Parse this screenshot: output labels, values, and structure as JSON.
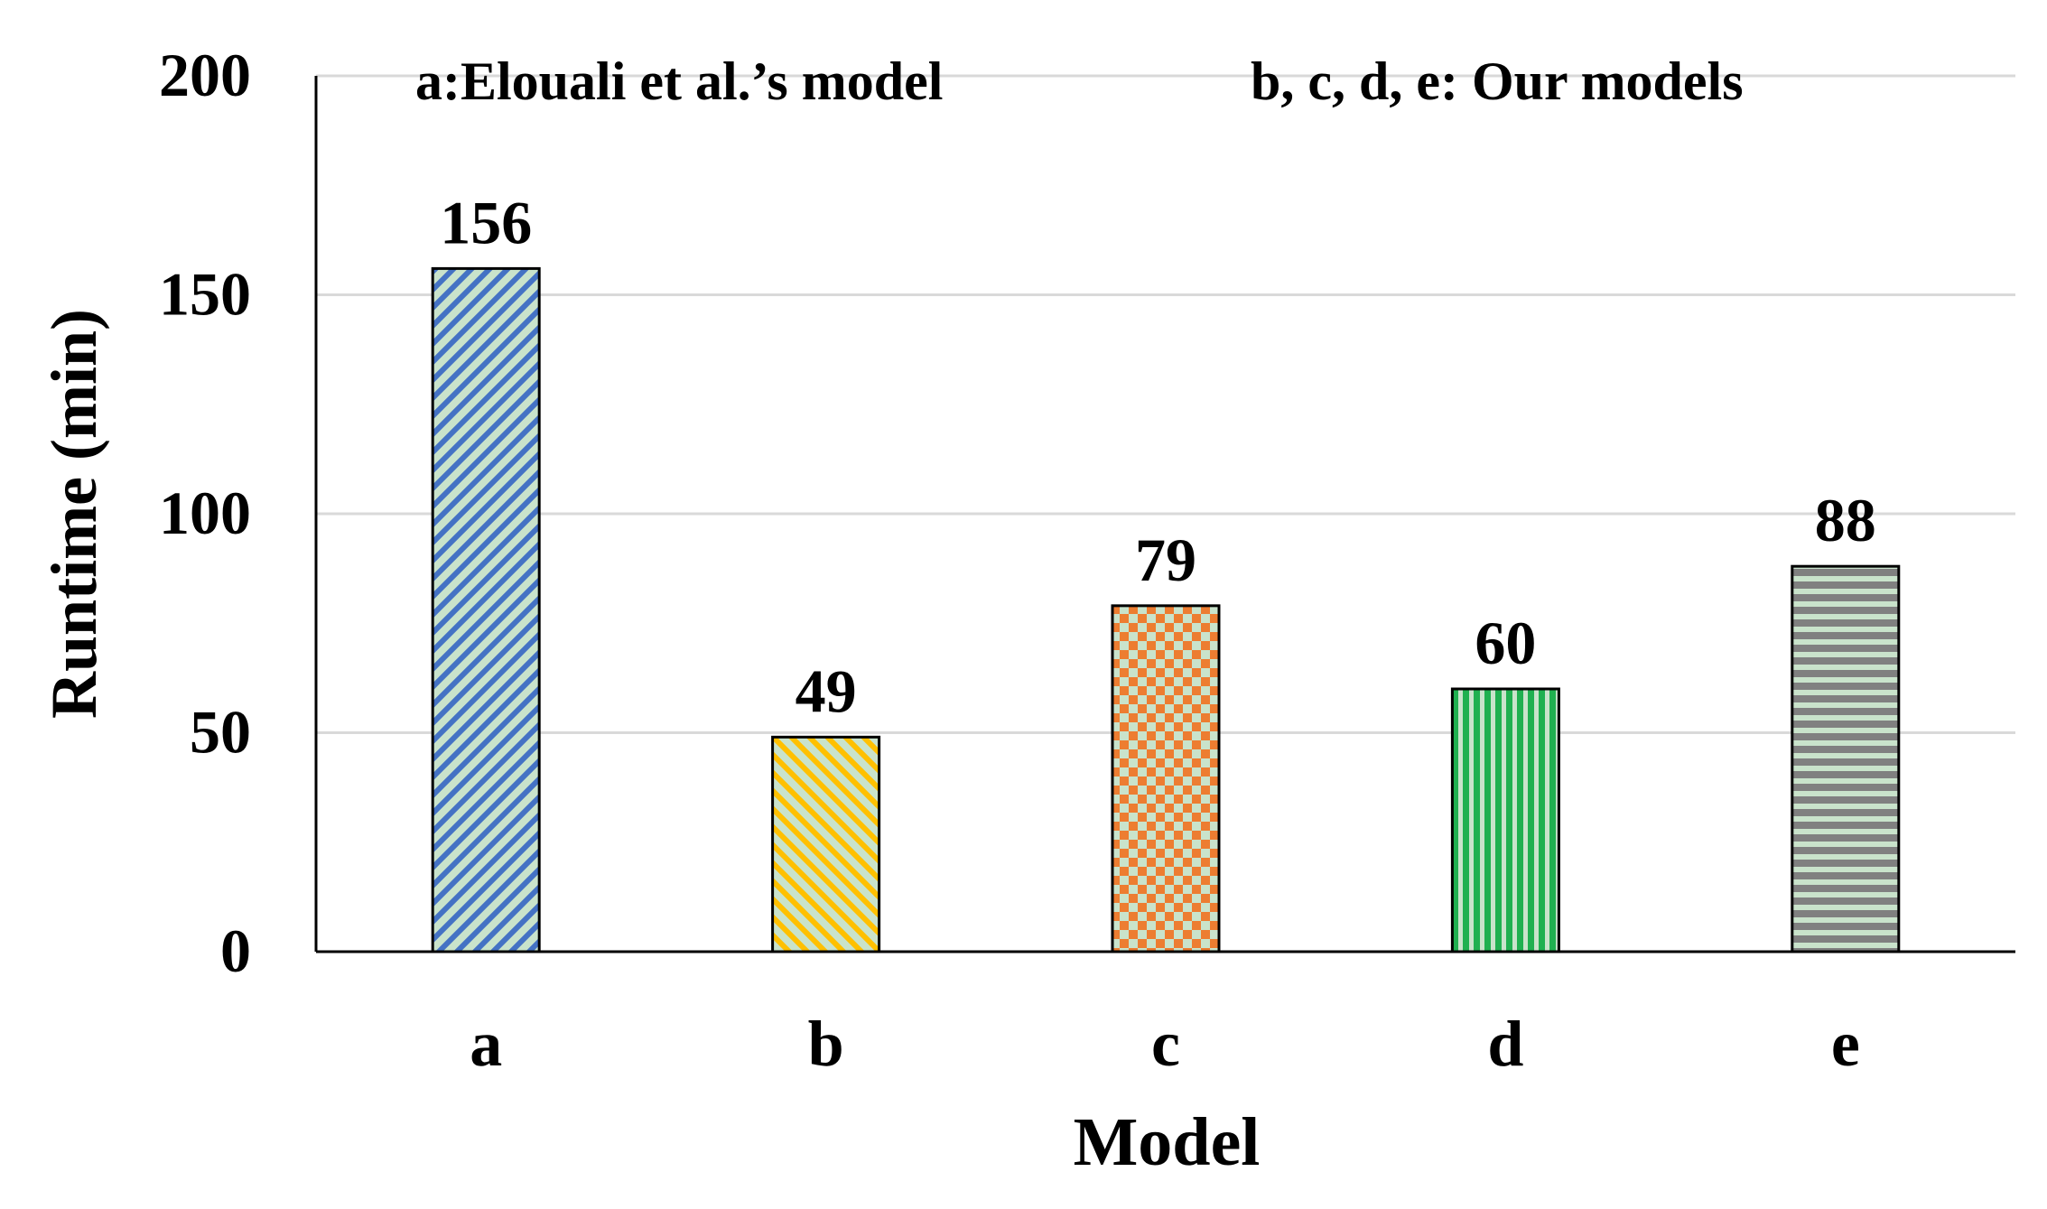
{
  "chart_data": {
    "type": "bar",
    "categories": [
      "a",
      "b",
      "c",
      "d",
      "e"
    ],
    "values": [
      156,
      49,
      79,
      60,
      88
    ],
    "data_labels": [
      "156",
      "49",
      "79",
      "60",
      "88"
    ],
    "title": "",
    "xlabel": "Model",
    "ylabel": "Runtime (min)",
    "ylim": [
      0,
      200
    ],
    "yticks": [
      0,
      50,
      100,
      150,
      200
    ],
    "ytick_labels": [
      "0",
      "50",
      "100",
      "150",
      "200"
    ],
    "grid": true,
    "annotations": [
      "a:Elouali et al.’s model",
      "b, c, d, e: Our models"
    ],
    "bar_patterns": [
      "diagonal-up",
      "diagonal-down",
      "checker",
      "vertical",
      "horizontal"
    ],
    "bar_colors": [
      "#4472C4",
      "#FFC000",
      "#ED7D31",
      "#20B050",
      "#808080"
    ],
    "pattern_background": "#C9E3CB"
  }
}
